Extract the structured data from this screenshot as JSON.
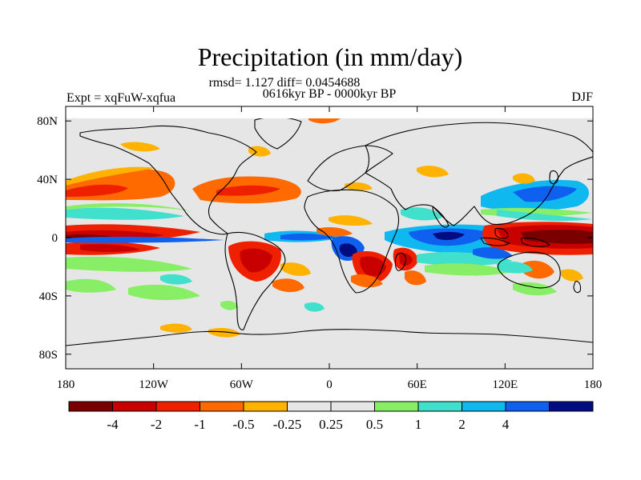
{
  "chart_data": {
    "type": "heatmap",
    "title": "Precipitation (in mm/day)",
    "stats_line": "rmsd= 1.127 diff= 0.0454688",
    "period_line": "0616kyr BP - 0000kyr BP",
    "left_label": "Expt = xqFuW-xqfua",
    "right_label": "DJF",
    "variable": "precipitation difference",
    "units": "mm/day",
    "rmsd": 1.127,
    "diff": 0.0454688,
    "lon_range": [
      -180,
      180
    ],
    "lat_range": [
      -90,
      90
    ],
    "x_ticks": [
      {
        "value": -180,
        "label": "180"
      },
      {
        "value": -120,
        "label": "120W"
      },
      {
        "value": -60,
        "label": "60W"
      },
      {
        "value": 0,
        "label": "0"
      },
      {
        "value": 60,
        "label": "60E"
      },
      {
        "value": 120,
        "label": "120E"
      },
      {
        "value": 180,
        "label": "180"
      }
    ],
    "y_ticks": [
      {
        "value": 80,
        "label": "80N"
      },
      {
        "value": 40,
        "label": "40N"
      },
      {
        "value": 0,
        "label": "0"
      },
      {
        "value": -40,
        "label": "40S"
      },
      {
        "value": -80,
        "label": "80S"
      }
    ],
    "colorbar": {
      "colors": [
        "#7a0000",
        "#c80000",
        "#ee2000",
        "#ff6a00",
        "#ffb200",
        "#e6e6e6",
        "#e6e6e6",
        "#88ee66",
        "#40e0cc",
        "#10b8f0",
        "#1060f0",
        "#000c80"
      ],
      "tick_labels": [
        "-4",
        "-2",
        "-1",
        "-0.5",
        "-0.25",
        "0.25",
        "0.5",
        "1",
        "2",
        "4"
      ]
    },
    "anomalies": [
      {
        "region": "central Pacific equatorial",
        "lon": -160,
        "lat": -2,
        "value": -4
      },
      {
        "region": "western Pacific / Indonesia",
        "lon": 155,
        "lat": -2,
        "value": -4
      },
      {
        "region": "southern Africa",
        "lon": 25,
        "lat": -20,
        "value": -2
      },
      {
        "region": "Madagascar",
        "lon": 47,
        "lat": -20,
        "value": -1
      },
      {
        "region": "South America",
        "lon": -50,
        "lat": -15,
        "value": -2
      },
      {
        "region": "North Pacific",
        "lon": -160,
        "lat": 36,
        "value": -1
      },
      {
        "region": "North Atlantic",
        "lon": -50,
        "lat": 36,
        "value": -1
      },
      {
        "region": "Indian Ocean",
        "lon": 70,
        "lat": -6,
        "value": 2
      },
      {
        "region": "Congo basin",
        "lon": 20,
        "lat": -6,
        "value": 4
      },
      {
        "region": "Northwest Pacific",
        "lon": 150,
        "lat": 30,
        "value": 2
      },
      {
        "region": "tropical Atlantic",
        "lon": -25,
        "lat": 2,
        "value": 1
      },
      {
        "region": "Southern Ocean Pacific",
        "lon": -160,
        "lat": -40,
        "value": 0.5
      }
    ]
  }
}
